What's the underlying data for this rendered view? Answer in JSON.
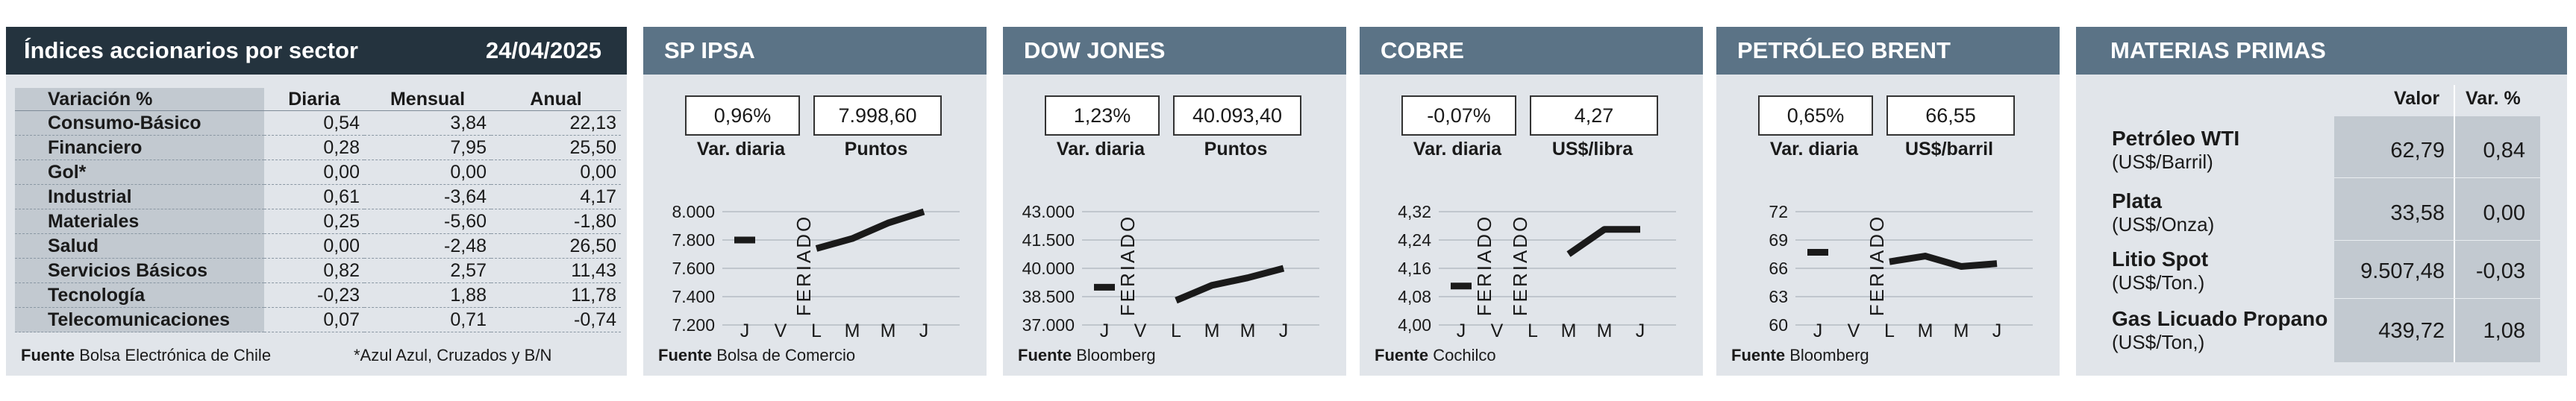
{
  "sectors": {
    "title": "Índices accionarios por sector",
    "date": "24/04/2025",
    "headers": [
      "Variación %",
      "Diaria",
      "Mensual",
      "Anual"
    ],
    "rows": [
      {
        "name": "Consumo-Básico",
        "diaria": "0,54",
        "mensual": "3,84",
        "anual": "22,13"
      },
      {
        "name": "Financiero",
        "diaria": "0,28",
        "mensual": "7,95",
        "anual": "25,50"
      },
      {
        "name": "Gol*",
        "diaria": "0,00",
        "mensual": "0,00",
        "anual": "0,00"
      },
      {
        "name": "Industrial",
        "diaria": "0,61",
        "mensual": "-3,64",
        "anual": "4,17"
      },
      {
        "name": "Materiales",
        "diaria": "0,25",
        "mensual": "-5,60",
        "anual": "-1,80"
      },
      {
        "name": "Salud",
        "diaria": "0,00",
        "mensual": "-2,48",
        "anual": "26,50"
      },
      {
        "name": "Servicios Básicos",
        "diaria": "0,82",
        "mensual": "2,57",
        "anual": "11,43"
      },
      {
        "name": "Tecnología",
        "diaria": "-0,23",
        "mensual": "1,88",
        "anual": "11,78"
      },
      {
        "name": "Telecomunicaciones",
        "diaria": "0,07",
        "mensual": "0,71",
        "anual": "-0,74"
      }
    ],
    "source_label": "Fuente",
    "source": "Bolsa Electrónica de Chile",
    "note": "*Azul Azul, Cruzados y B/N"
  },
  "indices": [
    {
      "title": "SP IPSA",
      "var": "0,96%",
      "value": "7.998,60",
      "var_label": "Var. diaria",
      "value_label": "Puntos",
      "source_label": "Fuente",
      "source": "Bolsa de Comercio"
    },
    {
      "title": "DOW JONES",
      "var": "1,23%",
      "value": "40.093,40",
      "var_label": "Var. diaria",
      "value_label": "Puntos",
      "source_label": "Fuente",
      "source": "Bloomberg"
    },
    {
      "title": "COBRE",
      "var": "-0,07%",
      "value": "4,27",
      "var_label": "Var. diaria",
      "value_label": "US$/libra",
      "source_label": "Fuente",
      "source": "Cochilco"
    },
    {
      "title": "PETRÓLEO BRENT",
      "var": "0,65%",
      "value": "66,55",
      "var_label": "Var. diaria",
      "value_label": "US$/barril",
      "source_label": "Fuente",
      "source": "Bloomberg"
    }
  ],
  "chart_data": [
    {
      "type": "line",
      "x": [
        "J",
        "V",
        "L",
        "M",
        "M",
        "J"
      ],
      "holiday_label": "FERIADO",
      "holiday_index": 2,
      "ylim": [
        7200,
        8000
      ],
      "yticks": [
        "8.000",
        "7.800",
        "7.600",
        "7.400",
        "7.200"
      ],
      "ytick_values": [
        8000,
        7800,
        7600,
        7400,
        7200
      ],
      "series": [
        {
          "values": [
            7800,
            null,
            7740,
            7810,
            7920,
            8000
          ]
        }
      ],
      "colors": {
        "line": "#1a1a1a",
        "grid": "#b5bcc3"
      }
    },
    {
      "type": "line",
      "x": [
        "J",
        "V",
        "L",
        "M",
        "M",
        "J"
      ],
      "holiday_label": "FERIADO",
      "holiday_index": 1,
      "ylim": [
        37000,
        43000
      ],
      "yticks": [
        "43.000",
        "41.500",
        "40.000",
        "38.500",
        "37.000"
      ],
      "ytick_values": [
        43000,
        41500,
        40000,
        38500,
        37000
      ],
      "series": [
        {
          "values": [
            39000,
            null,
            38300,
            39100,
            39500,
            40000
          ]
        }
      ],
      "colors": {
        "line": "#1a1a1a",
        "grid": "#b5bcc3"
      }
    },
    {
      "type": "line",
      "x": [
        "J",
        "V",
        "L",
        "M",
        "M",
        "J"
      ],
      "holiday_label": "FERIADO",
      "holiday_indices": [
        1,
        2
      ],
      "ylim": [
        4.0,
        4.32
      ],
      "yticks": [
        "4,32",
        "4,24",
        "4,16",
        "4,08",
        "4,00"
      ],
      "ytick_values": [
        4.32,
        4.24,
        4.16,
        4.08,
        4.0
      ],
      "series": [
        {
          "values": [
            4.11,
            null,
            null,
            4.2,
            4.27,
            4.27
          ]
        }
      ],
      "colors": {
        "line": "#1a1a1a",
        "grid": "#b5bcc3"
      }
    },
    {
      "type": "line",
      "x": [
        "J",
        "V",
        "L",
        "M",
        "M",
        "J"
      ],
      "holiday_label": "FERIADO",
      "holiday_index": 2,
      "ylim": [
        60,
        72
      ],
      "yticks": [
        "72",
        "69",
        "66",
        "63",
        "60"
      ],
      "ytick_values": [
        72,
        69,
        66,
        63,
        60
      ],
      "series": [
        {
          "values": [
            67.7,
            null,
            66.7,
            67.3,
            66.2,
            66.5
          ]
        }
      ],
      "colors": {
        "line": "#1a1a1a",
        "grid": "#b5bcc3"
      }
    }
  ],
  "commodities": {
    "title": "MATERIAS PRIMAS",
    "headers": [
      "Valor",
      "Var. %"
    ],
    "rows": [
      {
        "name": "Petróleo WTI",
        "unit": "(US$/Barril)",
        "value": "62,79",
        "var": "0,84"
      },
      {
        "name": "Plata",
        "unit": "(US$/Onza)",
        "value": "33,58",
        "var": "0,00"
      },
      {
        "name": "Litio Spot",
        "unit": "(US$/Ton.)",
        "value": "9.507,48",
        "var": "-0,03"
      },
      {
        "name": "Gas Licuado Propano",
        "unit": "(US$/Ton,)",
        "value": "439,72",
        "var": "1,08"
      }
    ]
  }
}
